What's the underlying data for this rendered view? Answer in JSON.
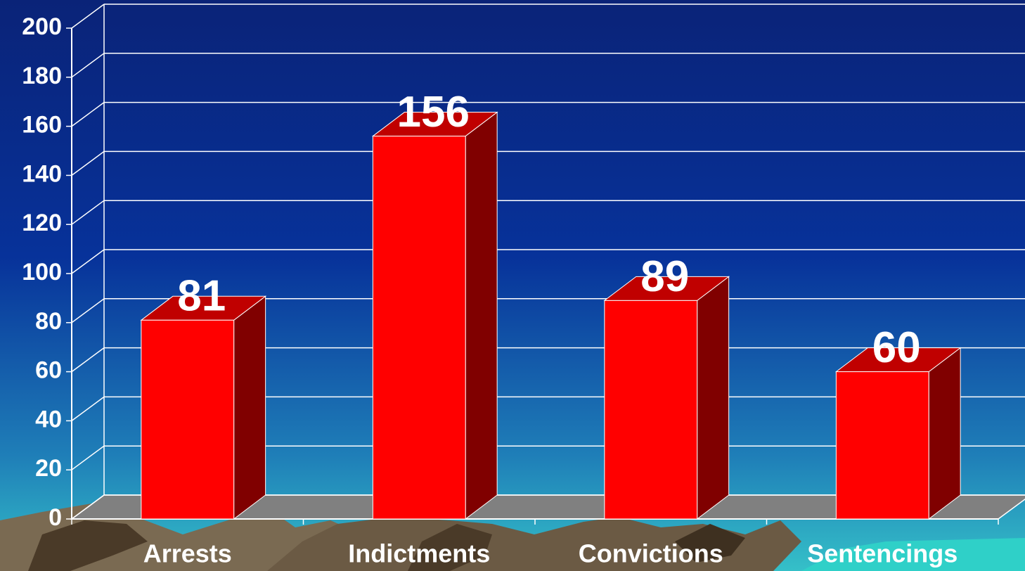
{
  "chart_data": {
    "type": "bar",
    "categories": [
      "Arrests",
      "Indictments",
      "Convictions",
      "Sentencings"
    ],
    "values": [
      81,
      156,
      89,
      60
    ],
    "color": "#ff0000",
    "ylim": [
      0,
      200
    ],
    "yticks": [
      0,
      20,
      40,
      60,
      80,
      100,
      120,
      140,
      160,
      180,
      200
    ],
    "grid": true
  }
}
